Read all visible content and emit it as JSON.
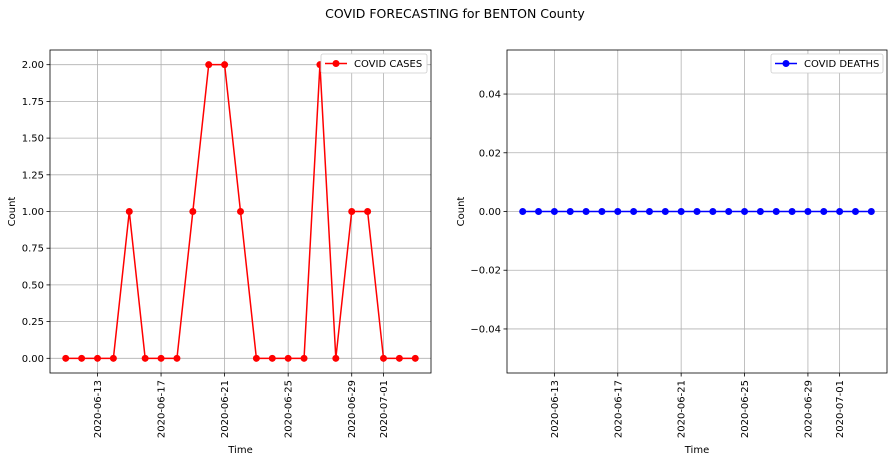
{
  "figure": {
    "suptitle": "COVID FORECASTING for BENTON County"
  },
  "chart_data": [
    {
      "type": "line",
      "title": "",
      "xlabel": "Time",
      "ylabel": "Count",
      "x": [
        "2020-06-11",
        "2020-06-12",
        "2020-06-13",
        "2020-06-14",
        "2020-06-15",
        "2020-06-16",
        "2020-06-17",
        "2020-06-18",
        "2020-06-19",
        "2020-06-20",
        "2020-06-21",
        "2020-06-22",
        "2020-06-23",
        "2020-06-24",
        "2020-06-25",
        "2020-06-26",
        "2020-06-27",
        "2020-06-28",
        "2020-06-29",
        "2020-06-30",
        "2020-07-01",
        "2020-07-02",
        "2020-07-03"
      ],
      "series": [
        {
          "name": "COVID CASES",
          "color": "#ff0000",
          "marker": "circle",
          "values": [
            0,
            0,
            0,
            0,
            1,
            0,
            0,
            0,
            1,
            2,
            2,
            1,
            0,
            0,
            0,
            0,
            2,
            0,
            1,
            1,
            0,
            0,
            0
          ]
        }
      ],
      "x_ticks": [
        "2020-06-13",
        "2020-06-17",
        "2020-06-21",
        "2020-06-25",
        "2020-06-29",
        "2020-07-01"
      ],
      "y_ticks": [
        "0.00",
        "0.25",
        "0.50",
        "0.75",
        "1.00",
        "1.25",
        "1.50",
        "1.75",
        "2.00"
      ],
      "ylim": [
        -0.1,
        2.1
      ],
      "grid": true,
      "legend": "top-right"
    },
    {
      "type": "line",
      "title": "",
      "xlabel": "Time",
      "ylabel": "Count",
      "x": [
        "2020-06-11",
        "2020-06-12",
        "2020-06-13",
        "2020-06-14",
        "2020-06-15",
        "2020-06-16",
        "2020-06-17",
        "2020-06-18",
        "2020-06-19",
        "2020-06-20",
        "2020-06-21",
        "2020-06-22",
        "2020-06-23",
        "2020-06-24",
        "2020-06-25",
        "2020-06-26",
        "2020-06-27",
        "2020-06-28",
        "2020-06-29",
        "2020-06-30",
        "2020-07-01",
        "2020-07-02",
        "2020-07-03"
      ],
      "series": [
        {
          "name": "COVID DEATHS",
          "color": "#0000ff",
          "marker": "circle",
          "values": [
            0,
            0,
            0,
            0,
            0,
            0,
            0,
            0,
            0,
            0,
            0,
            0,
            0,
            0,
            0,
            0,
            0,
            0,
            0,
            0,
            0,
            0,
            0
          ]
        }
      ],
      "x_ticks": [
        "2020-06-13",
        "2020-06-17",
        "2020-06-21",
        "2020-06-25",
        "2020-06-29",
        "2020-07-01"
      ],
      "y_ticks": [
        "−0.04",
        "−0.02",
        "0.00",
        "0.02",
        "0.04"
      ],
      "ylim": [
        -0.055,
        0.055
      ],
      "grid": true,
      "legend": "top-right"
    }
  ]
}
